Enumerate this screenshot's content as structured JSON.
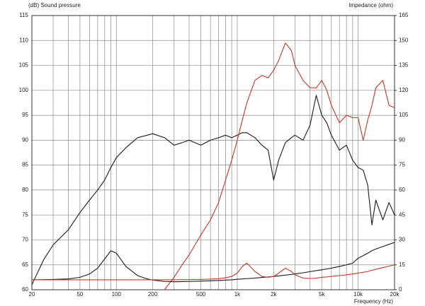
{
  "chart_data": {
    "type": "line",
    "ylabel": "(dB)  Sound pressure",
    "y2label": "Impedance  (ohm)",
    "xlabel": "Frequency  (Hz)",
    "xscale": "log",
    "grid": true,
    "xlim": [
      20,
      20000
    ],
    "xticks": [
      20,
      50,
      100,
      200,
      500,
      {
        "value": 1000,
        "label": "1k"
      },
      {
        "value": 2000,
        "label": "2k"
      },
      {
        "value": 5000,
        "label": "5k"
      },
      {
        "value": 10000,
        "label": "10k"
      },
      {
        "value": 20000,
        "label": "20k"
      }
    ],
    "xminor_ticks": [
      30,
      40,
      60,
      70,
      80,
      90,
      300,
      400,
      600,
      700,
      800,
      900,
      3000,
      4000,
      6000,
      7000,
      8000,
      9000
    ],
    "ylim": [
      60,
      115
    ],
    "yticks": [
      60,
      65,
      70,
      75,
      80,
      85,
      90,
      95,
      100,
      105,
      110,
      115
    ],
    "y2lim": [
      0,
      165
    ],
    "y2ticks": [
      0,
      15,
      30,
      45,
      60,
      75,
      90,
      105,
      120,
      135,
      150,
      165
    ],
    "x": [
      20,
      25,
      30,
      40,
      50,
      60,
      70,
      80,
      90,
      100,
      120,
      150,
      180,
      200,
      250,
      300,
      350,
      400,
      500,
      600,
      700,
      800,
      900,
      1000,
      1100,
      1200,
      1400,
      1600,
      1800,
      2000,
      2200,
      2500,
      2800,
      3000,
      3500,
      4000,
      4500,
      5000,
      5500,
      6000,
      7000,
      8000,
      9000,
      10000,
      11000,
      12000,
      13000,
      14000,
      16000,
      18000,
      20000
    ],
    "series": [
      {
        "color": "#1a1a1a",
        "values": [
          61,
          66,
          69,
          72,
          75.5,
          78,
          80,
          82,
          84.5,
          86.5,
          88.5,
          90.5,
          91,
          91.3,
          90.5,
          89,
          89.5,
          90,
          89,
          90,
          90.5,
          91,
          90.5,
          91,
          91.5,
          91.5,
          90.5,
          89,
          88,
          82,
          86,
          89.5,
          90.5,
          91,
          90,
          93,
          99,
          95,
          93.5,
          91,
          88,
          89,
          86,
          84.5,
          84,
          81,
          73,
          78,
          74,
          77.5,
          75
        ]
      },
      {
        "color": "#c0392b",
        "values": [
          null,
          null,
          null,
          null,
          null,
          null,
          null,
          null,
          null,
          null,
          null,
          null,
          null,
          null,
          60,
          62.5,
          65,
          67,
          71,
          74,
          77.5,
          82,
          86,
          90,
          94,
          97.5,
          102,
          103,
          102.5,
          104,
          106,
          109.5,
          108,
          105,
          102,
          100.5,
          100.5,
          102,
          100,
          97,
          93.5,
          95,
          94.5,
          94.5,
          90,
          94,
          97,
          100.5,
          102,
          97,
          96.5
        ]
      },
      {
        "color": "#1a1a1a",
        "axis": "y2",
        "values": [
          6,
          6.1,
          6.2,
          6.5,
          7.5,
          9.5,
          13,
          18.5,
          23.5,
          22,
          14,
          8.5,
          6.5,
          5.8,
          5,
          4.8,
          4.9,
          5,
          5.2,
          5.4,
          5.6,
          5.8,
          6,
          6.3,
          6.5,
          6.7,
          7,
          7.4,
          7.7,
          8,
          8.3,
          8.8,
          9.2,
          9.5,
          10.2,
          10.9,
          11.5,
          12,
          12.5,
          13,
          14,
          15,
          16,
          19,
          20.5,
          22,
          23.5,
          24.5,
          26,
          27.3,
          28.5
        ]
      },
      {
        "color": "#c0392b",
        "axis": "y2",
        "values": [
          6,
          6,
          6,
          6,
          6,
          6,
          6,
          6,
          6,
          6,
          6,
          6,
          6,
          6,
          6,
          6,
          6.1,
          6.1,
          6.2,
          6.4,
          6.6,
          7.2,
          8,
          10,
          14,
          16,
          11,
          8,
          7.5,
          8,
          10,
          13,
          11,
          9,
          7,
          6.8,
          7,
          7.5,
          7.7,
          8,
          8.5,
          9,
          9.5,
          10,
          10.5,
          11,
          11.7,
          12.3,
          13.3,
          14.2,
          15
        ]
      }
    ]
  }
}
